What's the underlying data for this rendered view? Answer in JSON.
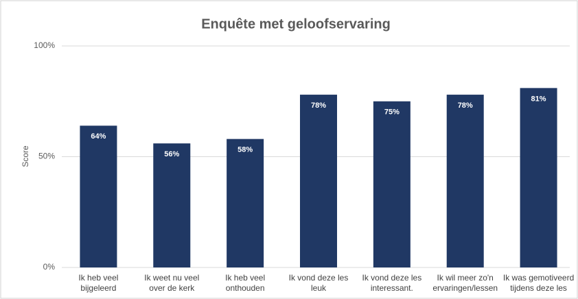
{
  "chart_data": {
    "type": "bar",
    "title": "Enquête met geloofservaring",
    "y_label": "Score",
    "categories": [
      "Ik heb veel bijgeleerd",
      "Ik weet nu veel over de kerk",
      "Ik heb veel onthouden",
      "Ik vond deze les leuk",
      "Ik vond deze les interessant.",
      "Ik wil meer zo'n ervaringen/lessen",
      "Ik was gemotiveerd tijdens deze les"
    ],
    "values": [
      64,
      56,
      58,
      78,
      75,
      78,
      81
    ],
    "value_labels": [
      "64%",
      "56%",
      "58%",
      "78%",
      "75%",
      "78%",
      "81%"
    ],
    "color": "#203864",
    "ylim": [
      0,
      100
    ],
    "yticks": [
      {
        "value": 0,
        "label": "0%"
      },
      {
        "value": 50,
        "label": "50%"
      },
      {
        "value": 100,
        "label": "100%"
      }
    ],
    "grid": true
  }
}
